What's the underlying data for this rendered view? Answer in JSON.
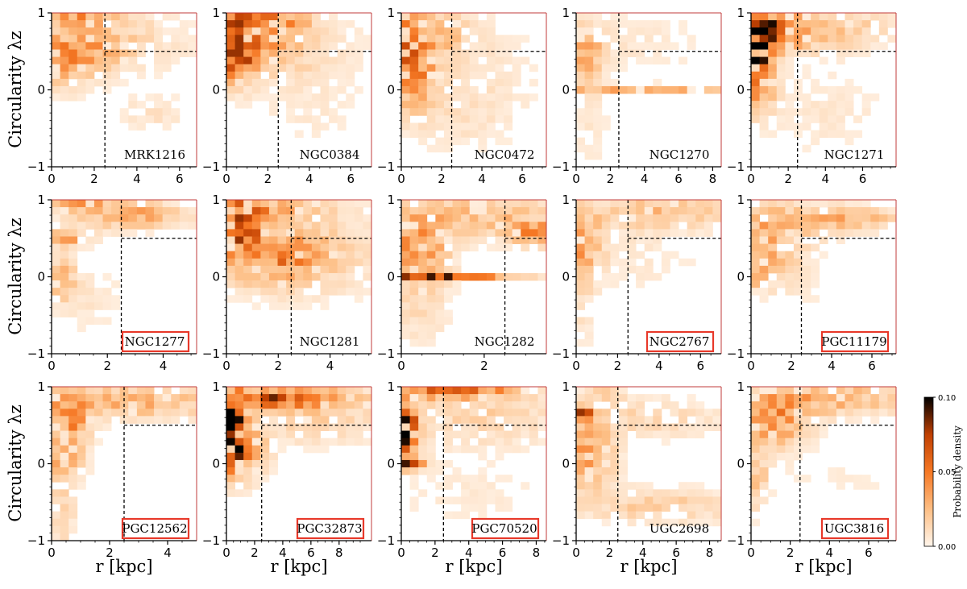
{
  "chart_data": {
    "type": "heatmap",
    "ylabel": "Circularity λz",
    "xlabel": "r [kpc]",
    "ylim": [
      -1,
      1
    ],
    "y_ticks": [
      -1,
      0,
      1
    ],
    "r_cut_kpc": 2.5,
    "lambda_cut": 0.5,
    "colorbar": {
      "label": "Probability density",
      "range": [
        0.0,
        0.1
      ],
      "ticks": [
        "0.00",
        "0.05",
        "0.10"
      ]
    },
    "panels": [
      {
        "name": "MRK1216",
        "xlim": [
          0,
          6.8
        ],
        "x_ticks": [
          0,
          2,
          4,
          6
        ],
        "highlighted": false,
        "peak": 0.045,
        "blobs": [
          [
            0.8,
            0.95,
            1.2,
            0.1,
            0.7
          ],
          [
            0.3,
            0.5,
            1.8,
            0.15,
            0.8
          ],
          [
            0.4,
            0.25,
            1.2,
            0.2,
            0.5
          ],
          [
            4.5,
            0.6,
            2.0,
            0.3,
            0.15
          ],
          [
            4.7,
            -0.3,
            1.2,
            0.15,
            0.2
          ],
          [
            2.5,
            0.8,
            1.5,
            0.25,
            0.25
          ]
        ]
      },
      {
        "name": "NGC0384",
        "xlim": [
          0,
          7
        ],
        "x_ticks": [
          0,
          2,
          4,
          6
        ],
        "highlighted": false,
        "peak": 0.07,
        "blobs": [
          [
            0.4,
            0.45,
            0.6,
            0.25,
            0.9
          ],
          [
            1.5,
            0.92,
            1.5,
            0.1,
            0.6
          ],
          [
            1.2,
            0.6,
            1.6,
            0.25,
            0.4
          ],
          [
            3.8,
            0.55,
            2.0,
            0.35,
            0.15
          ],
          [
            4.0,
            -0.3,
            2.0,
            0.3,
            0.07
          ]
        ]
      },
      {
        "name": "NGC0472",
        "xlim": [
          0,
          7.2
        ],
        "x_ticks": [
          0,
          2,
          4,
          6
        ],
        "highlighted": false,
        "peak": 0.06,
        "blobs": [
          [
            0.4,
            0.35,
            0.8,
            0.35,
            0.9
          ],
          [
            0.3,
            0.95,
            0.4,
            0.06,
            0.8
          ],
          [
            1.8,
            0.75,
            1.2,
            0.2,
            0.35
          ],
          [
            3.5,
            0.2,
            2.5,
            0.5,
            0.12
          ],
          [
            2.5,
            -0.4,
            2.0,
            0.3,
            0.1
          ]
        ]
      },
      {
        "name": "NGC1270",
        "xlim": [
          0,
          8.5
        ],
        "x_ticks": [
          0,
          2,
          4,
          6,
          8
        ],
        "highlighted": false,
        "peak": 0.04,
        "blobs": [
          [
            0.4,
            0.5,
            0.8,
            0.25,
            0.8
          ],
          [
            4.5,
            0.0,
            5.5,
            0.04,
            0.8
          ],
          [
            3.5,
            0.6,
            3.0,
            0.3,
            0.15
          ],
          [
            0.8,
            -0.5,
            0.8,
            0.4,
            0.15
          ]
        ]
      },
      {
        "name": "NGC1271",
        "xlim": [
          0,
          7.8
        ],
        "x_ticks": [
          0,
          2,
          4,
          6
        ],
        "highlighted": false,
        "peak": 0.1,
        "blobs": [
          [
            0.2,
            0.55,
            0.4,
            0.2,
            1.0
          ],
          [
            1.0,
            0.75,
            1.0,
            0.15,
            0.7
          ],
          [
            0.4,
            0.2,
            0.6,
            0.3,
            0.5
          ],
          [
            3.5,
            0.8,
            2.5,
            0.2,
            0.25
          ],
          [
            4.0,
            -0.3,
            2.5,
            0.4,
            0.06
          ]
        ]
      },
      {
        "name": "NGC1277",
        "xlim": [
          0,
          5.2
        ],
        "x_ticks": [
          0,
          2,
          4
        ],
        "highlighted": true,
        "peak": 0.045,
        "blobs": [
          [
            2.8,
            0.8,
            1.4,
            0.12,
            0.7
          ],
          [
            0.9,
            0.95,
            0.8,
            0.07,
            0.6
          ],
          [
            0.5,
            0.5,
            0.6,
            0.07,
            0.7
          ],
          [
            0.3,
            0.0,
            0.4,
            0.2,
            0.5
          ],
          [
            1.0,
            -0.3,
            1.2,
            0.3,
            0.15
          ]
        ]
      },
      {
        "name": "NGC1281",
        "xlim": [
          0,
          5.6
        ],
        "x_ticks": [
          0,
          2,
          4
        ],
        "highlighted": false,
        "peak": 0.07,
        "blobs": [
          [
            0.6,
            0.7,
            0.6,
            0.25,
            0.8
          ],
          [
            1.8,
            0.25,
            1.4,
            0.25,
            0.5
          ],
          [
            3.5,
            0.35,
            2.0,
            0.4,
            0.18
          ],
          [
            2.0,
            0.9,
            1.5,
            0.1,
            0.3
          ]
        ]
      },
      {
        "name": "NGC1282",
        "xlim": [
          0,
          3.5
        ],
        "x_ticks": [
          0,
          2
        ],
        "highlighted": false,
        "peak": 0.08,
        "blobs": [
          [
            0.7,
            0.0,
            1.3,
            0.03,
            0.8
          ],
          [
            0.4,
            0.3,
            0.5,
            0.3,
            0.5
          ],
          [
            3.3,
            0.55,
            0.5,
            0.1,
            0.5
          ],
          [
            1.8,
            0.8,
            1.6,
            0.2,
            0.3
          ],
          [
            0.5,
            -0.5,
            0.5,
            0.3,
            0.12
          ]
        ]
      },
      {
        "name": "NGC2767",
        "xlim": [
          0,
          7
        ],
        "x_ticks": [
          0,
          2,
          4,
          6
        ],
        "highlighted": true,
        "peak": 0.04,
        "blobs": [
          [
            0.3,
            0.4,
            0.6,
            0.3,
            0.7
          ],
          [
            4.0,
            0.85,
            3.0,
            0.15,
            0.5
          ],
          [
            2.5,
            0.3,
            2.5,
            0.4,
            0.15
          ],
          [
            0.3,
            -0.4,
            0.4,
            0.4,
            0.2
          ]
        ]
      },
      {
        "name": "PGC11179",
        "xlim": [
          0,
          7.2
        ],
        "x_ticks": [
          0,
          2,
          4,
          6
        ],
        "highlighted": true,
        "peak": 0.035,
        "blobs": [
          [
            0.8,
            0.4,
            1.2,
            0.3,
            0.8
          ],
          [
            5.0,
            0.75,
            2.5,
            0.08,
            0.6
          ],
          [
            2.5,
            0.75,
            2.5,
            0.2,
            0.35
          ],
          [
            0.3,
            0.0,
            0.4,
            0.1,
            0.5
          ],
          [
            2.5,
            -0.2,
            1.5,
            0.3,
            0.1
          ]
        ]
      },
      {
        "name": "PGC12562",
        "xlim": [
          0,
          5
        ],
        "x_ticks": [
          0,
          2,
          4
        ],
        "highlighted": true,
        "peak": 0.045,
        "blobs": [
          [
            0.6,
            0.5,
            0.5,
            0.25,
            0.8
          ],
          [
            2.5,
            0.8,
            2.5,
            0.15,
            0.6
          ],
          [
            0.3,
            0.0,
            0.5,
            0.15,
            0.6
          ],
          [
            0.3,
            -0.6,
            0.4,
            0.4,
            0.3
          ]
        ]
      },
      {
        "name": "PGC32873",
        "xlim": [
          0,
          10.3
        ],
        "x_ticks": [
          0,
          2,
          4,
          6,
          8
        ],
        "highlighted": true,
        "peak": 0.1,
        "blobs": [
          [
            0.3,
            0.45,
            0.6,
            0.3,
            1.0
          ],
          [
            4.0,
            0.85,
            3.5,
            0.08,
            0.6
          ],
          [
            1.0,
            0.15,
            1.2,
            0.25,
            0.35
          ],
          [
            6.0,
            0.6,
            4.0,
            0.25,
            0.15
          ]
        ]
      },
      {
        "name": "PGC70520",
        "xlim": [
          0,
          8.6
        ],
        "x_ticks": [
          0,
          2,
          4,
          6,
          8
        ],
        "highlighted": true,
        "peak": 0.1,
        "blobs": [
          [
            0.2,
            0.45,
            0.5,
            0.2,
            1.0
          ],
          [
            2.5,
            0.95,
            2.5,
            0.06,
            0.6
          ],
          [
            0.4,
            0.0,
            0.6,
            0.06,
            0.8
          ],
          [
            4.5,
            0.65,
            3.5,
            0.3,
            0.15
          ],
          [
            4.0,
            -0.4,
            3.5,
            0.3,
            0.05
          ]
        ]
      },
      {
        "name": "UGC2698",
        "xlim": [
          0,
          8.7
        ],
        "x_ticks": [
          0,
          2,
          4,
          6,
          8
        ],
        "highlighted": false,
        "peak": 0.07,
        "blobs": [
          [
            0.3,
            0.65,
            0.4,
            0.06,
            1.0
          ],
          [
            0.6,
            0.1,
            1.2,
            0.3,
            0.5
          ],
          [
            5.0,
            -0.55,
            3.5,
            0.15,
            0.25
          ],
          [
            4.0,
            0.6,
            3.5,
            0.2,
            0.18
          ],
          [
            1.5,
            0.9,
            0.8,
            0.1,
            0.2
          ]
        ]
      },
      {
        "name": "UGC3816",
        "xlim": [
          0,
          7.4
        ],
        "x_ticks": [
          0,
          2,
          4,
          6
        ],
        "highlighted": true,
        "peak": 0.05,
        "blobs": [
          [
            1.2,
            0.55,
            1.2,
            0.25,
            0.7
          ],
          [
            4.0,
            0.85,
            3.0,
            0.15,
            0.55
          ],
          [
            0.3,
            -0.2,
            0.4,
            0.3,
            0.4
          ],
          [
            4.5,
            -0.2,
            2.5,
            0.2,
            0.08
          ]
        ]
      }
    ]
  }
}
